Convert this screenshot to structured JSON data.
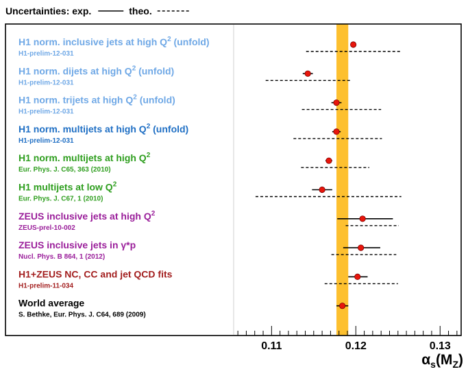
{
  "chart_data": {
    "type": "scatter",
    "legend": {
      "title": "Uncertainties: exp.",
      "theo_label": "theo."
    },
    "xlabel": "αs(MZ)",
    "xlim": [
      0.1055,
      0.1325
    ],
    "xticks": [
      "0.11",
      "0.12",
      "0.13"
    ],
    "xtick_values": [
      0.11,
      0.12,
      0.13
    ],
    "band": {
      "low": 0.1177,
      "high": 0.1191,
      "color": "#FDC02F"
    },
    "measurements": [
      {
        "title": "H1 norm. inclusive jets at high Q",
        "sup": "2",
        "suffix": " (unfold)",
        "ref": "H1-prelim-12-031",
        "color": "#6FA8E6",
        "value": 0.1197,
        "exp": [
          0.1194,
          0.12
        ],
        "theo": [
          0.1141,
          0.1254
        ]
      },
      {
        "title": "H1 norm. dijets at high Q",
        "sup": "2",
        "suffix": " (unfold)",
        "ref": "H1-prelim-12-031",
        "color": "#6FA8E6",
        "value": 0.1143,
        "exp": [
          0.1137,
          0.1149
        ],
        "theo": [
          0.1093,
          0.1194
        ]
      },
      {
        "title": "H1 norm. trijets at high Q",
        "sup": "2",
        "suffix": " (unfold)",
        "ref": "H1-prelim-12-031",
        "color": "#6FA8E6",
        "value": 0.1177,
        "exp": [
          0.1171,
          0.1183
        ],
        "theo": [
          0.1136,
          0.123
        ]
      },
      {
        "title": "H1 norm. multijets at high Q",
        "sup": "2",
        "suffix": " (unfold)",
        "ref": "H1-prelim-12-031",
        "color": "#1F6FC4",
        "value": 0.1177,
        "exp": [
          0.1172,
          0.1182
        ],
        "theo": [
          0.1126,
          0.1231
        ]
      },
      {
        "title": "H1 norm. multijets at high Q",
        "sup": "2",
        "suffix": "",
        "ref": "Eur. Phys. J. C65, 363 (2010)",
        "color": "#2E9E1E",
        "value": 0.1168,
        "exp": [
          0.1164,
          0.1172
        ],
        "theo": [
          0.1135,
          0.1216
        ]
      },
      {
        "title": "H1 multijets at low Q",
        "sup": "2",
        "suffix": "",
        "ref": "Eur. Phys. J. C67, 1 (2010)",
        "color": "#2E9E1E",
        "value": 0.116,
        "exp": [
          0.1148,
          0.1172
        ],
        "theo": [
          0.1081,
          0.1254
        ]
      },
      {
        "title": "ZEUS inclusive jets at high Q",
        "sup": "2",
        "suffix": "",
        "ref": "ZEUS-prel-10-002",
        "color": "#9A1E9A",
        "value": 0.1208,
        "exp": [
          0.1178,
          0.1244
        ],
        "theo": [
          0.1188,
          0.1251
        ]
      },
      {
        "title": "ZEUS inclusive jets in γ*p",
        "sup": "",
        "suffix": "",
        "ref": "Nucl. Phys. B 864, 1 (2012)",
        "color": "#9A1E9A",
        "value": 0.1206,
        "exp": [
          0.1185,
          0.1229
        ],
        "theo": [
          0.1171,
          0.1248
        ]
      },
      {
        "title": "H1+ZEUS NC, CC and jet QCD fits",
        "sup": "",
        "suffix": "",
        "ref": "H1-prelim-11-034",
        "color": "#A31F1F",
        "value": 0.1202,
        "exp": [
          0.1191,
          0.1214
        ],
        "theo": [
          0.1163,
          0.125
        ]
      },
      {
        "title": "World average",
        "sup": "",
        "suffix": "",
        "ref": "S. Bethke, Eur. Phys. J. C64, 689 (2009)",
        "color": "#000000",
        "value": 0.1184,
        "exp": [
          0.1177,
          0.1191
        ],
        "theo": null
      }
    ]
  }
}
